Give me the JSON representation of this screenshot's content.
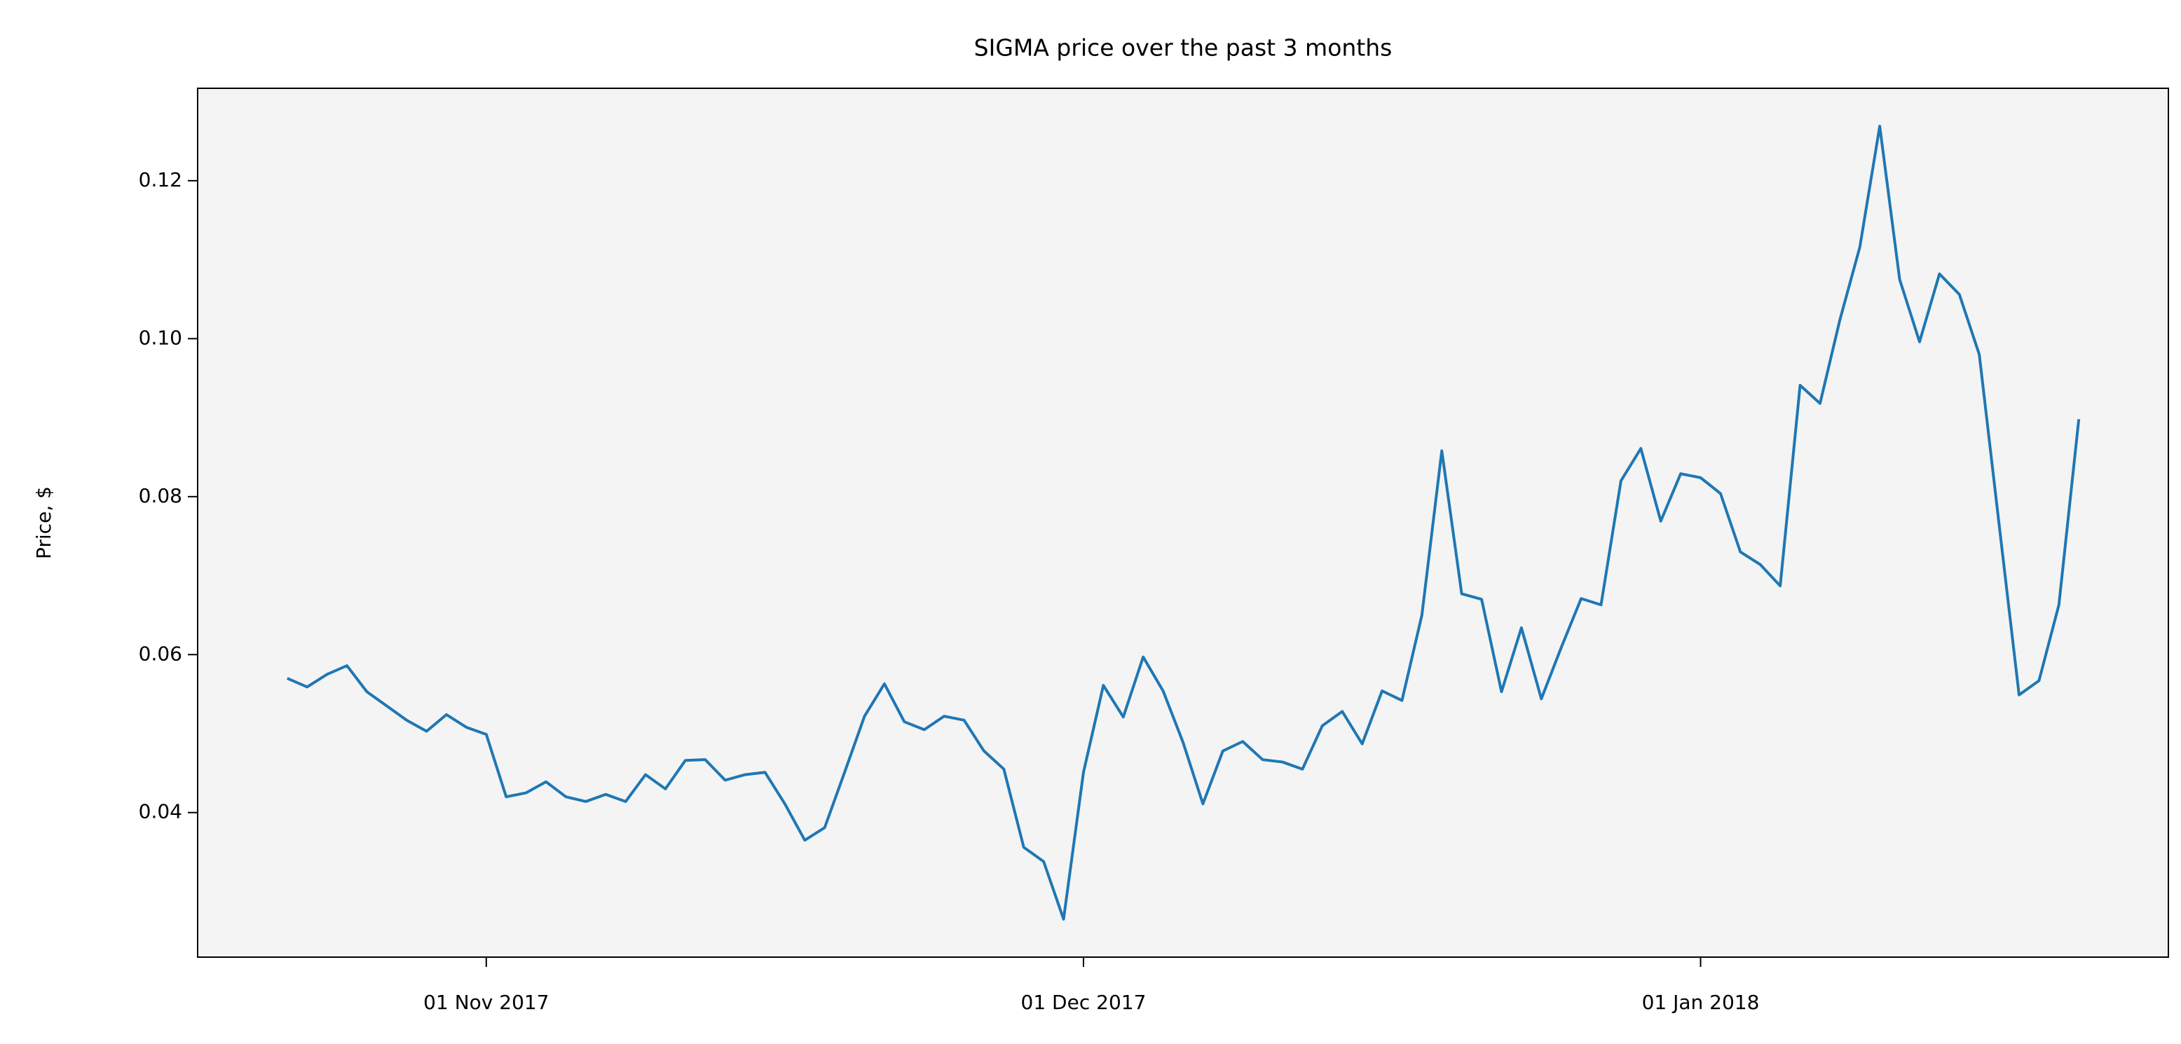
{
  "chart_data": {
    "type": "line",
    "title": "SIGMA price over the past 3 months",
    "ylabel": "Price, $",
    "color": "#1f77b4",
    "x": [
      "2017-10-22",
      "2017-10-23",
      "2017-10-24",
      "2017-10-25",
      "2017-10-26",
      "2017-10-27",
      "2017-10-28",
      "2017-10-29",
      "2017-10-30",
      "2017-10-31",
      "2017-11-01",
      "2017-11-02",
      "2017-11-03",
      "2017-11-04",
      "2017-11-05",
      "2017-11-06",
      "2017-11-07",
      "2017-11-08",
      "2017-11-09",
      "2017-11-10",
      "2017-11-11",
      "2017-11-12",
      "2017-11-13",
      "2017-11-14",
      "2017-11-15",
      "2017-11-16",
      "2017-11-17",
      "2017-11-18",
      "2017-11-19",
      "2017-11-20",
      "2017-11-21",
      "2017-11-22",
      "2017-11-23",
      "2017-11-24",
      "2017-11-25",
      "2017-11-26",
      "2017-11-27",
      "2017-11-28",
      "2017-11-29",
      "2017-11-30",
      "2017-12-01",
      "2017-12-02",
      "2017-12-03",
      "2017-12-04",
      "2017-12-05",
      "2017-12-06",
      "2017-12-07",
      "2017-12-08",
      "2017-12-09",
      "2017-12-10",
      "2017-12-11",
      "2017-12-12",
      "2017-12-13",
      "2017-12-14",
      "2017-12-15",
      "2017-12-16",
      "2017-12-17",
      "2017-12-18",
      "2017-12-19",
      "2017-12-20",
      "2017-12-21",
      "2017-12-22",
      "2017-12-23",
      "2017-12-24",
      "2017-12-25",
      "2017-12-26",
      "2017-12-27",
      "2017-12-28",
      "2017-12-29",
      "2017-12-30",
      "2017-12-31",
      "2018-01-01",
      "2018-01-02",
      "2018-01-03",
      "2018-01-04",
      "2018-01-05",
      "2018-01-06",
      "2018-01-07",
      "2018-01-08",
      "2018-01-09",
      "2018-01-10",
      "2018-01-11",
      "2018-01-12",
      "2018-01-13",
      "2018-01-14",
      "2018-01-15",
      "2018-01-16",
      "2018-01-17",
      "2018-01-18",
      "2018-01-19",
      "2018-01-20"
    ],
    "values": [
      0.057,
      0.0559,
      0.0575,
      0.0586,
      0.0553,
      0.0535,
      0.0517,
      0.0503,
      0.0524,
      0.0508,
      0.0499,
      0.042,
      0.0425,
      0.0439,
      0.042,
      0.0414,
      0.0423,
      0.0414,
      0.0448,
      0.043,
      0.0466,
      0.0467,
      0.0441,
      0.0448,
      0.0451,
      0.0411,
      0.0365,
      0.0381,
      0.0451,
      0.0522,
      0.0563,
      0.0515,
      0.0505,
      0.0522,
      0.0517,
      0.0478,
      0.0455,
      0.0356,
      0.0338,
      0.0265,
      0.0451,
      0.0561,
      0.0521,
      0.0597,
      0.0554,
      0.0489,
      0.0411,
      0.0478,
      0.049,
      0.0467,
      0.0464,
      0.0455,
      0.051,
      0.0528,
      0.0487,
      0.0554,
      0.0542,
      0.065,
      0.0858,
      0.0677,
      0.067,
      0.0553,
      0.0634,
      0.0544,
      0.0609,
      0.0671,
      0.0663,
      0.082,
      0.0861,
      0.0769,
      0.0829,
      0.0824,
      0.0804,
      0.073,
      0.0714,
      0.0687,
      0.0941,
      0.0918,
      0.1024,
      0.1116,
      0.1269,
      0.1075,
      0.0996,
      0.1082,
      0.1056,
      0.098,
      0.0764,
      0.0549,
      0.0567,
      0.0663,
      0.0898
    ],
    "xlim": [
      "2017-10-17T12:00:00Z",
      "2018-01-24T12:00:00Z"
    ],
    "xticks": [
      {
        "value": "2017-11-01",
        "label": "01 Nov 2017"
      },
      {
        "value": "2017-12-01",
        "label": "01 Dec 2017"
      },
      {
        "value": "2018-01-01",
        "label": "01 Jan 2018"
      }
    ],
    "ylim": [
      0.0217,
      0.1317
    ],
    "yticks": [
      0.04,
      0.06,
      0.08,
      {
        "value": 0.1,
        "label": "0.10"
      },
      0.12
    ],
    "background": "#f4f4f4"
  }
}
